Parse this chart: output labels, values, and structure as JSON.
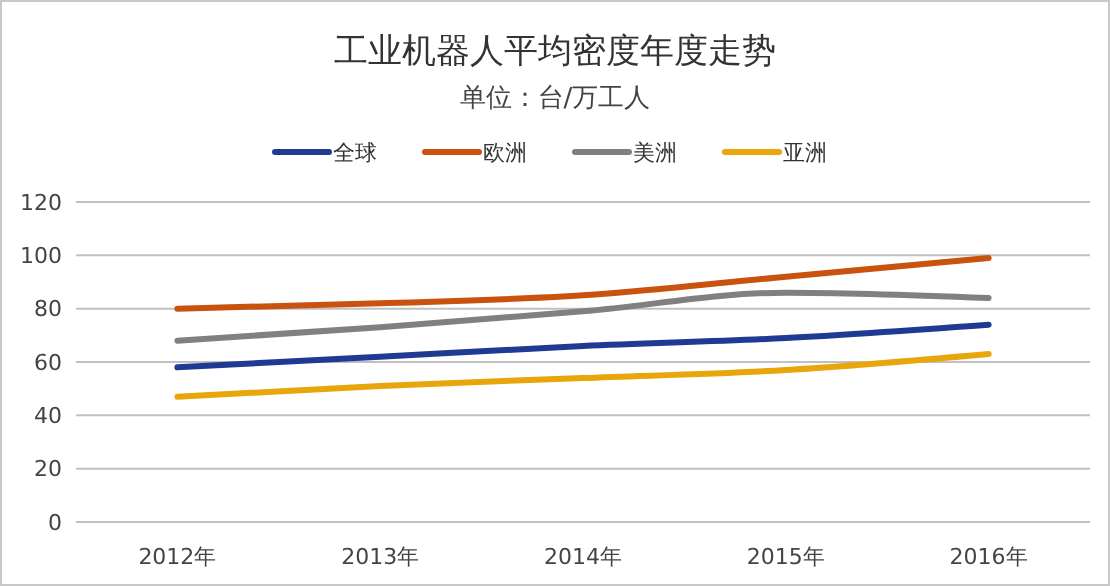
{
  "chart_data": {
    "type": "line",
    "title": "工业机器人平均密度年度走势",
    "subtitle": "单位：台/万工人",
    "categories": [
      "2012年",
      "2013年",
      "2014年",
      "2015年",
      "2016年"
    ],
    "series": [
      {
        "name": "全球",
        "color": "#1f3a93",
        "values": [
          58,
          62,
          66,
          69,
          74
        ]
      },
      {
        "name": "欧洲",
        "color": "#c9520f",
        "values": [
          80,
          82,
          85,
          92,
          99
        ]
      },
      {
        "name": "美洲",
        "color": "#808080",
        "values": [
          68,
          73,
          79,
          86,
          84
        ]
      },
      {
        "name": "亚洲",
        "color": "#e8a50c",
        "values": [
          47,
          51,
          54,
          57,
          63
        ]
      }
    ],
    "ylim": [
      0,
      120
    ],
    "yticks": [
      0,
      20,
      40,
      60,
      80,
      100,
      120
    ],
    "grid": "y",
    "legend": "top",
    "marker": "none",
    "line_style": "solid"
  }
}
